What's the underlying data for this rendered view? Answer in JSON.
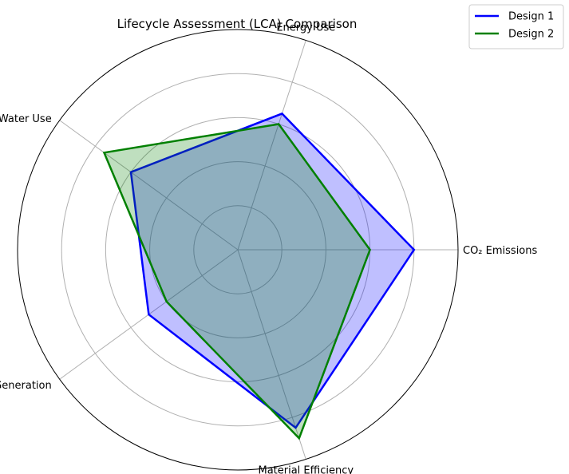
{
  "chart_data": {
    "type": "radar",
    "title": "Lifecycle Assessment (LCA) Comparison",
    "categories": [
      "CO₂ Emissions",
      "Energy Use",
      "Water Use",
      "Waste Generation",
      "Material Efficiency"
    ],
    "series": [
      {
        "name": "Design 1",
        "values": [
          8,
          6.5,
          6,
          5,
          8.5
        ],
        "color": "#0000ff",
        "fill": "#0000ff"
      },
      {
        "name": "Design 2",
        "values": [
          6,
          6,
          7.5,
          4,
          9
        ],
        "color": "#008000",
        "fill": "#008000"
      }
    ],
    "rlim": [
      0,
      10
    ],
    "radial_ticks": [
      2,
      4,
      6,
      8
    ],
    "grid": true,
    "legend_position": "top-right"
  }
}
